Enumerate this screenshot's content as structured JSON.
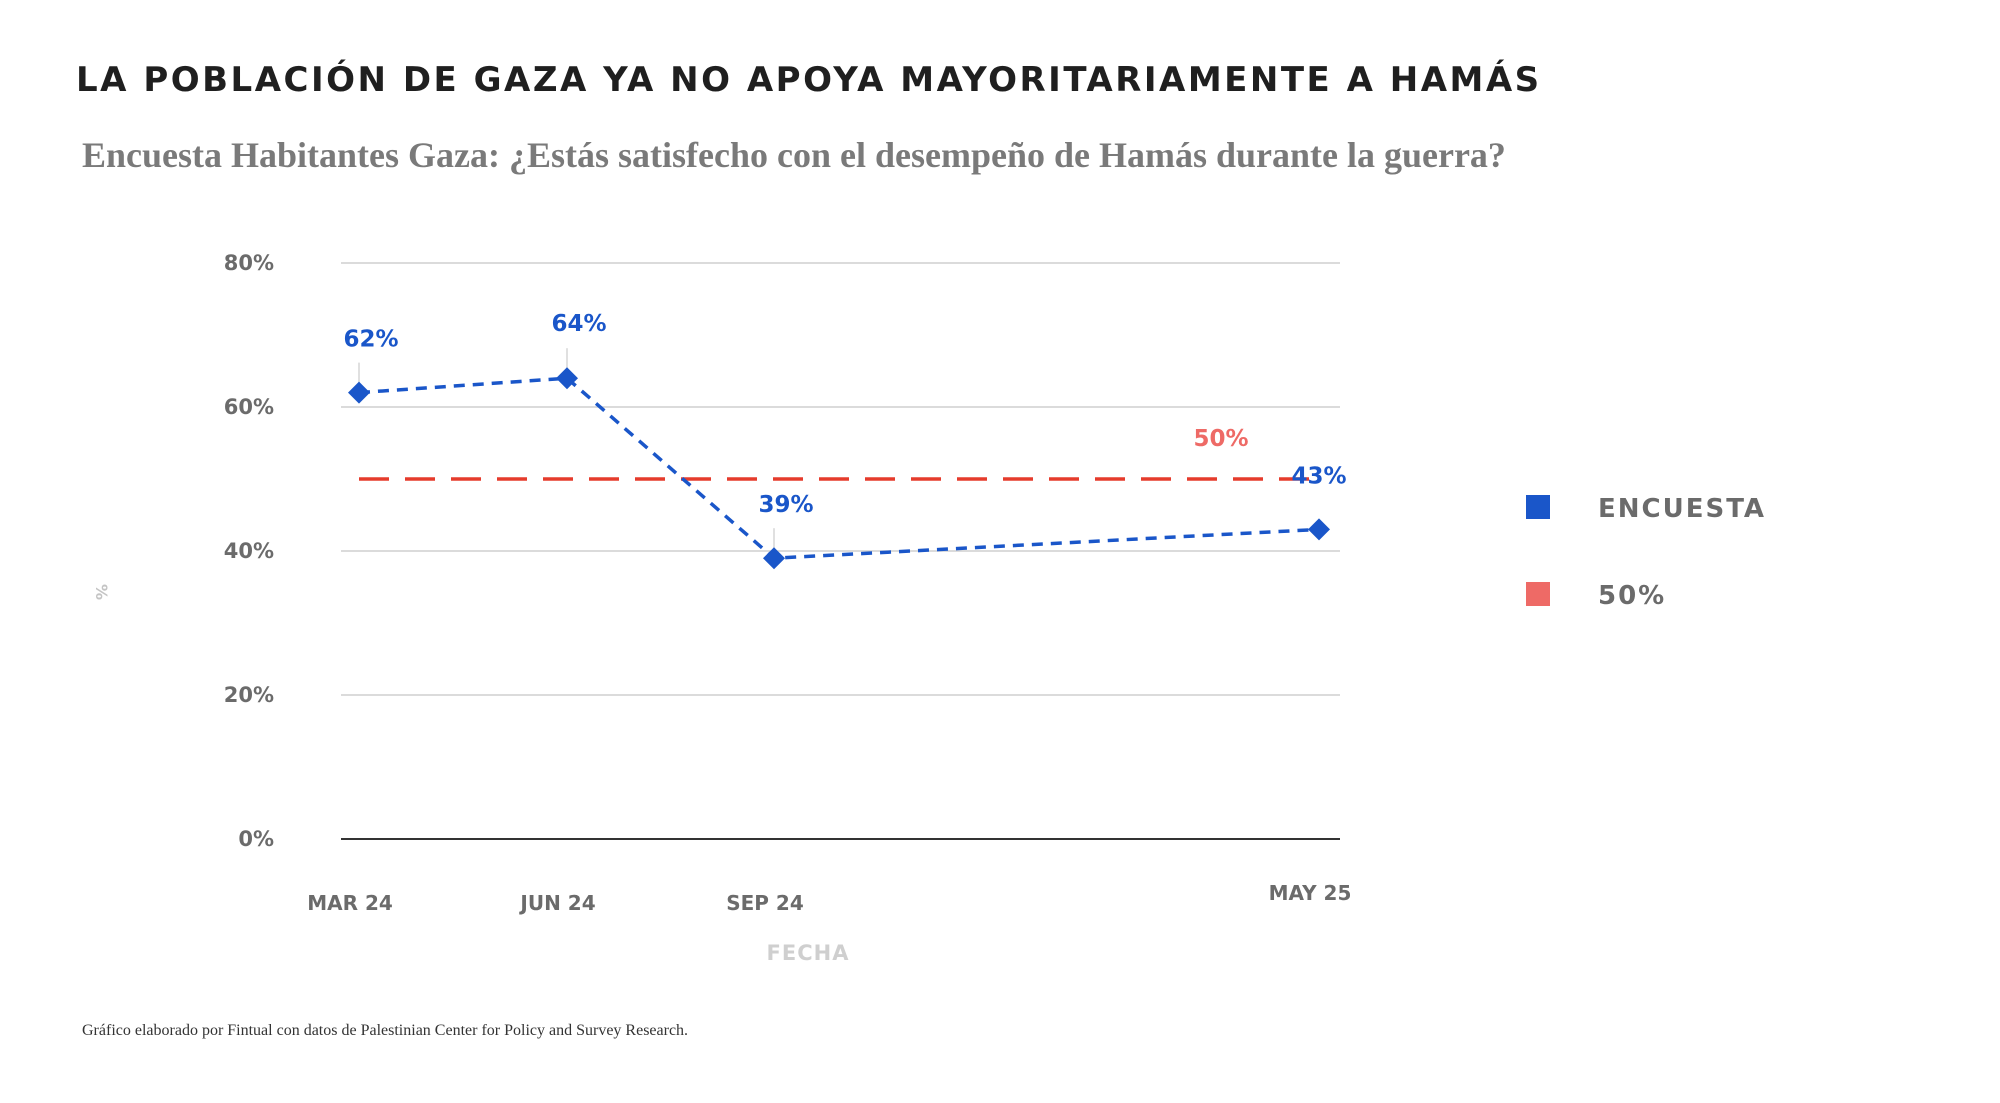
{
  "page": {
    "title": "LA POBLACIÓN DE GAZA YA NO APOYA MAYORITARIAMENTE A HAMÁS",
    "subtitle": "Encuesta Habitantes Gaza: ¿Estás satisfecho con el desempeño de Hamás durante la guerra?",
    "footnote": "Gráfico elaborado por Fintual con datos de Palestinian Center for Policy and Survey Research."
  },
  "chart_data": {
    "type": "line",
    "xlabel": "FECHA",
    "ylabel": "%",
    "ylim": [
      0,
      80
    ],
    "yticks": [
      "0%",
      "20%",
      "40%",
      "60%",
      "80%"
    ],
    "categories": [
      "MAR 24",
      "JUN 24",
      "SEP 24",
      "MAY 25"
    ],
    "grid": true,
    "legend_position": "right",
    "series": [
      {
        "name": "ENCUESTA",
        "color": "#1a56c9",
        "style": "dashed",
        "marker": "diamond",
        "values": [
          62,
          64,
          39,
          43
        ],
        "labels": [
          "62%",
          "64%",
          "39%",
          "43%"
        ]
      },
      {
        "name": "50%",
        "color": "#e53b2c",
        "legend_color": "#ee6a66",
        "style": "long-dashed",
        "values": [
          50,
          50,
          50,
          50
        ],
        "labels": [
          "50%"
        ]
      }
    ]
  }
}
